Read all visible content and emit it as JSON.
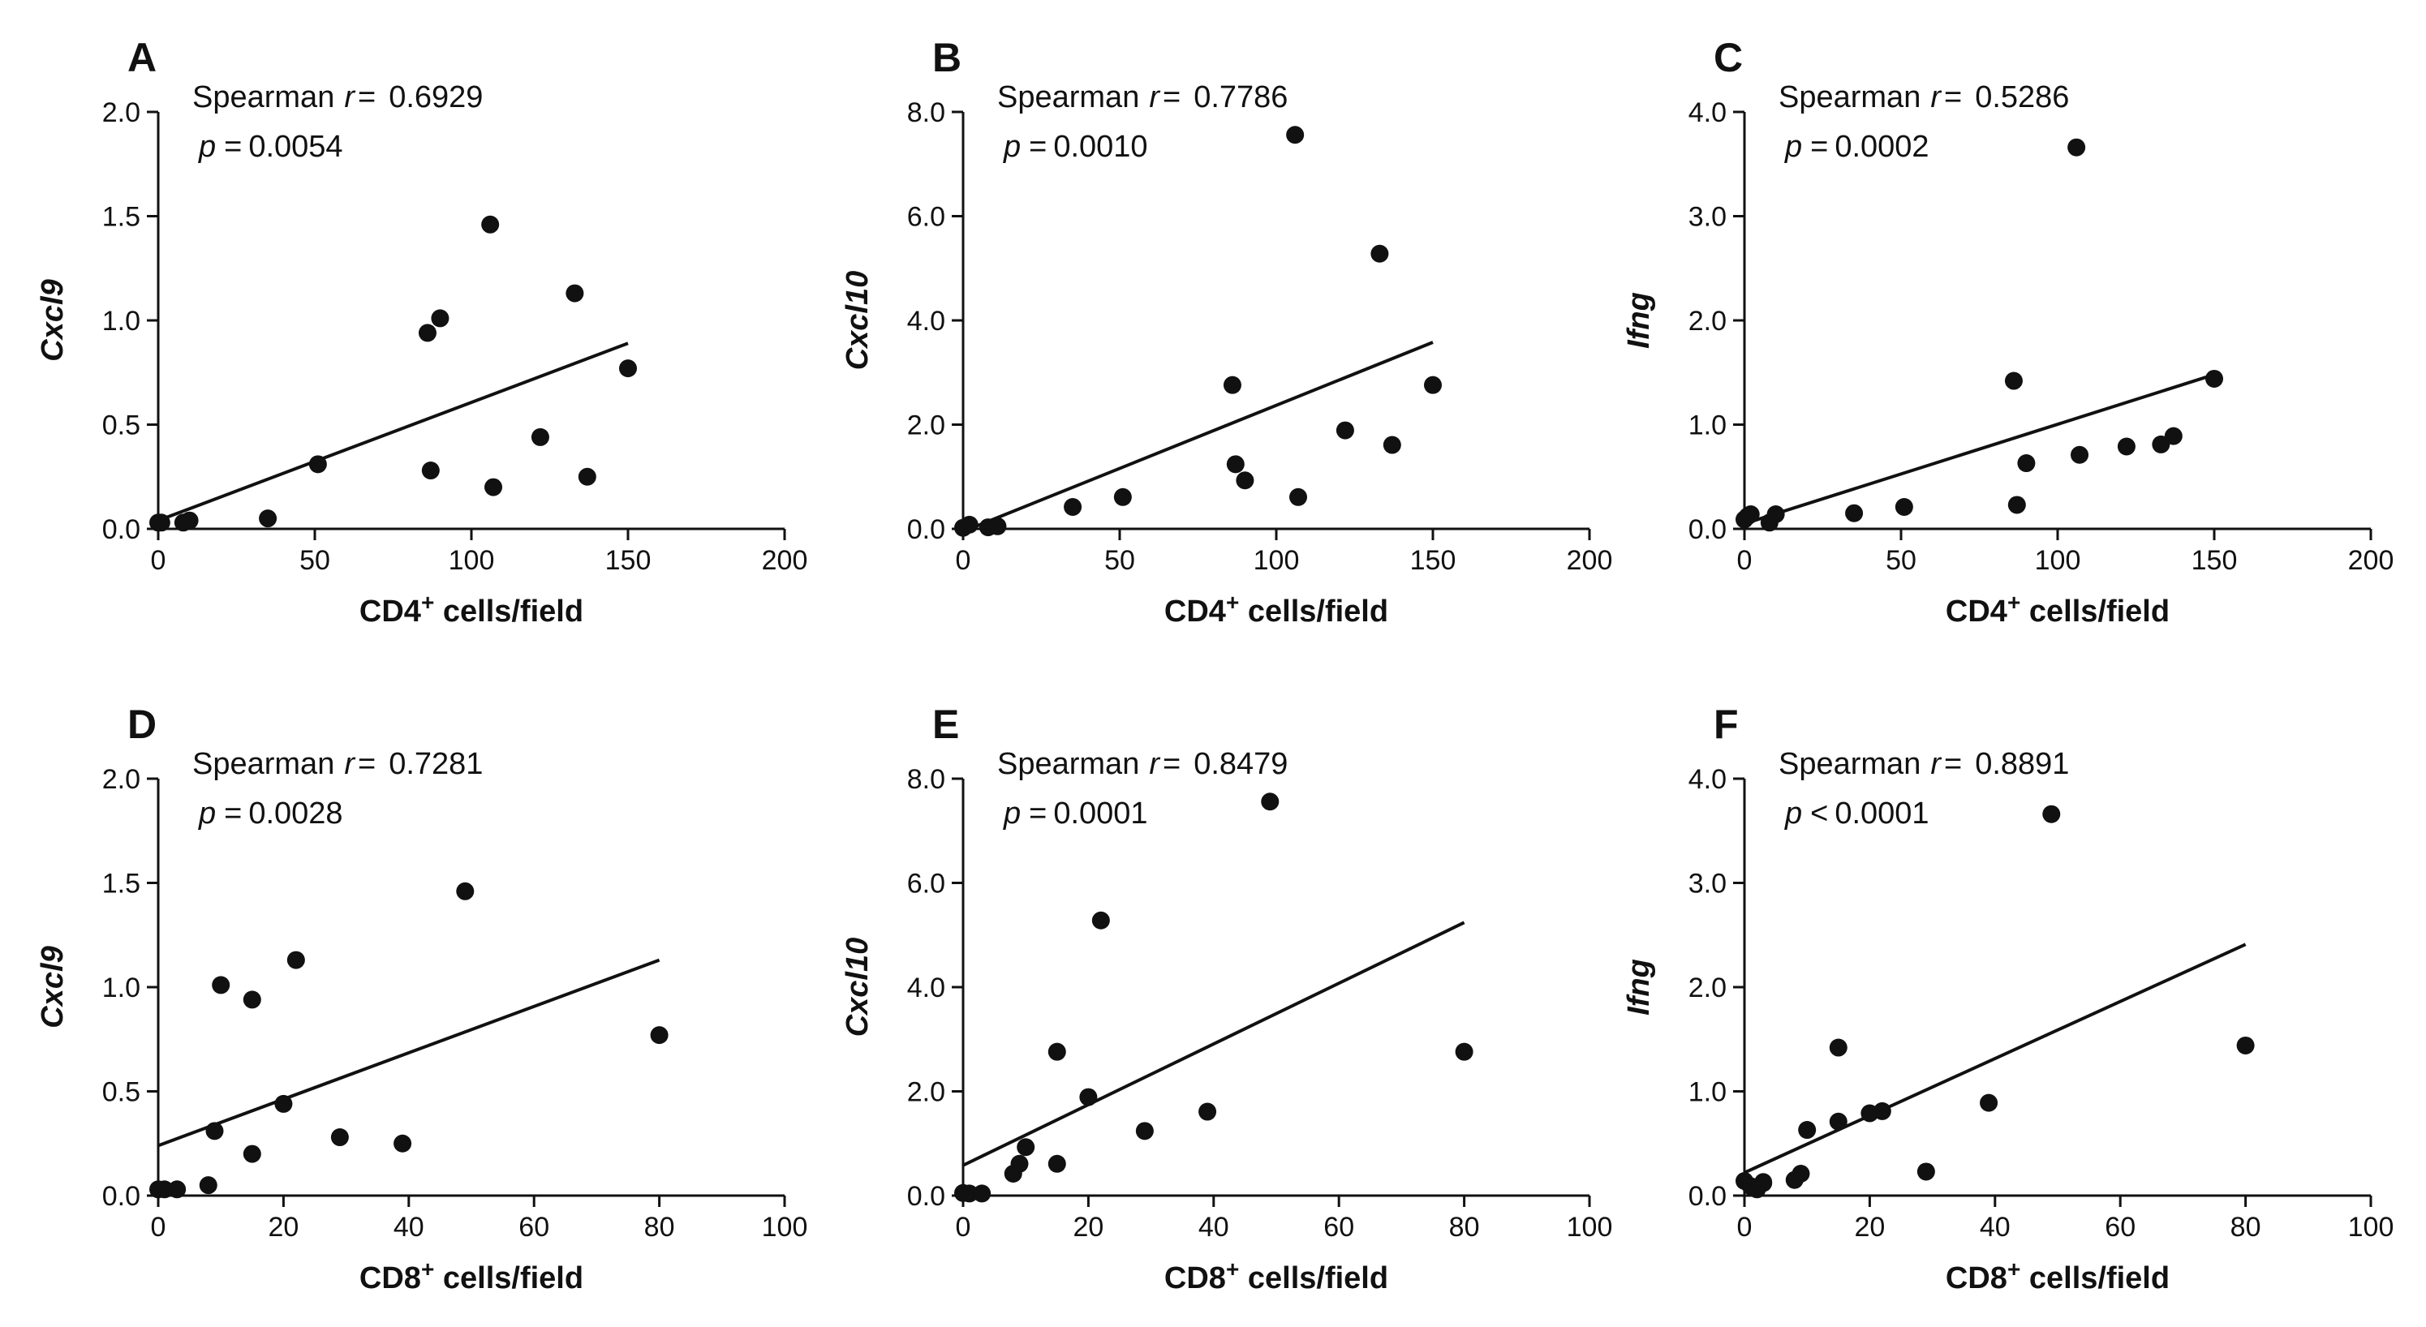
{
  "chart_data": [
    {
      "panel": "A",
      "type": "scatter",
      "stat_label": "Spearman",
      "r_symbol": "r",
      "r_op": "=",
      "r_value": "0.6929",
      "p_symbol": "p",
      "p_op": "=",
      "p_value": "0.0054",
      "xlabel_main": "CD4",
      "xlabel_sup": "+",
      "xlabel_rest": " cells/field",
      "ylabel": "Cxcl9",
      "xlim": [
        0,
        200
      ],
      "ylim": [
        0,
        2.0
      ],
      "xticks": [
        0,
        50,
        100,
        150,
        200
      ],
      "xtick_labels": [
        "0",
        "50",
        "100",
        "150",
        "200"
      ],
      "yticks": [
        0,
        0.5,
        1.0,
        1.5,
        2.0
      ],
      "ytick_labels": [
        "0.0",
        "0.5",
        "1.0",
        "1.5",
        "2.0"
      ],
      "x": [
        0,
        1,
        8,
        10,
        35,
        51,
        86,
        87,
        90,
        106,
        107,
        122,
        133,
        137,
        150
      ],
      "y": [
        0.03,
        0.03,
        0.03,
        0.04,
        0.05,
        0.31,
        0.94,
        0.28,
        1.01,
        1.46,
        0.2,
        0.44,
        1.13,
        0.25,
        0.77
      ],
      "fit": {
        "x": [
          0,
          150
        ],
        "y": [
          0.04,
          0.89
        ]
      }
    },
    {
      "panel": "B",
      "type": "scatter",
      "stat_label": "Spearman",
      "r_symbol": "r",
      "r_op": "=",
      "r_value": "0.7786",
      "p_symbol": "p",
      "p_op": "=",
      "p_value": "0.0010",
      "xlabel_main": "CD4",
      "xlabel_sup": "+",
      "xlabel_rest": " cells/field",
      "ylabel": "Cxcl10",
      "xlim": [
        0,
        200
      ],
      "ylim": [
        0,
        8.0
      ],
      "xticks": [
        0,
        50,
        100,
        150,
        200
      ],
      "xtick_labels": [
        "0",
        "50",
        "100",
        "150",
        "200"
      ],
      "yticks": [
        0,
        2,
        4,
        6,
        8
      ],
      "ytick_labels": [
        "0.0",
        "2.0",
        "4.0",
        "6.0",
        "8.0"
      ],
      "x": [
        0,
        2,
        8,
        11,
        35,
        51,
        86,
        87,
        90,
        106,
        107,
        122,
        133,
        137,
        150
      ],
      "y": [
        0.02,
        0.08,
        0.03,
        0.05,
        0.42,
        0.61,
        2.76,
        1.24,
        0.93,
        7.56,
        0.61,
        1.89,
        5.28,
        1.61,
        2.76
      ],
      "fit": {
        "x": [
          0,
          150
        ],
        "y": [
          -0.05,
          3.58
        ]
      }
    },
    {
      "panel": "C",
      "type": "scatter",
      "stat_label": "Spearman",
      "r_symbol": "r",
      "r_op": "=",
      "r_value": "0.5286",
      "p_symbol": "p",
      "p_op": "=",
      "p_value": "0.0002",
      "xlabel_main": "CD4",
      "xlabel_sup": "+",
      "xlabel_rest": " cells/field",
      "ylabel": "Ifng",
      "xlim": [
        0,
        200
      ],
      "ylim": [
        0,
        4.0
      ],
      "xticks": [
        0,
        50,
        100,
        150,
        200
      ],
      "xtick_labels": [
        "0",
        "50",
        "100",
        "150",
        "200"
      ],
      "yticks": [
        0,
        1,
        2,
        3,
        4
      ],
      "ytick_labels": [
        "0.0",
        "1.0",
        "2.0",
        "3.0",
        "4.0"
      ],
      "x": [
        0,
        1,
        2,
        8,
        10,
        35,
        51,
        86,
        87,
        90,
        106,
        107,
        122,
        133,
        137,
        150
      ],
      "y": [
        0.09,
        0.12,
        0.14,
        0.06,
        0.14,
        0.15,
        0.21,
        1.42,
        0.23,
        0.63,
        3.66,
        0.71,
        0.79,
        0.81,
        0.89,
        1.44
      ],
      "fit": {
        "x": [
          0,
          150
        ],
        "y": [
          0.05,
          1.48
        ]
      }
    },
    {
      "panel": "D",
      "type": "scatter",
      "stat_label": "Spearman",
      "r_symbol": "r",
      "r_op": "=",
      "r_value": "0.7281",
      "p_symbol": "p",
      "p_op": "=",
      "p_value": "0.0028",
      "xlabel_main": "CD8",
      "xlabel_sup": "+",
      "xlabel_rest": " cells/field",
      "ylabel": "Cxcl9",
      "xlim": [
        0,
        100
      ],
      "ylim": [
        0,
        2.0
      ],
      "xticks": [
        0,
        20,
        40,
        60,
        80,
        100
      ],
      "xtick_labels": [
        "0",
        "20",
        "40",
        "60",
        "80",
        "100"
      ],
      "yticks": [
        0,
        0.5,
        1.0,
        1.5,
        2.0
      ],
      "ytick_labels": [
        "0.0",
        "0.5",
        "1.0",
        "1.5",
        "2.0"
      ],
      "x": [
        0,
        1,
        3,
        8,
        9,
        10,
        15,
        15,
        20,
        22,
        29,
        39,
        49,
        80
      ],
      "y": [
        0.03,
        0.03,
        0.03,
        0.05,
        0.31,
        1.01,
        0.94,
        0.2,
        0.44,
        1.13,
        0.28,
        0.25,
        1.46,
        0.77
      ],
      "fit": {
        "x": [
          0,
          80
        ],
        "y": [
          0.24,
          1.13
        ]
      }
    },
    {
      "panel": "E",
      "type": "scatter",
      "stat_label": "Spearman",
      "r_symbol": "r",
      "r_op": "=",
      "r_value": "0.8479",
      "p_symbol": "p",
      "p_op": "=",
      "p_value": "0.0001",
      "xlabel_main": "CD8",
      "xlabel_sup": "+",
      "xlabel_rest": " cells/field",
      "ylabel": "Cxcl10",
      "xlim": [
        0,
        100
      ],
      "ylim": [
        0,
        8.0
      ],
      "xticks": [
        0,
        20,
        40,
        60,
        80,
        100
      ],
      "xtick_labels": [
        "0",
        "20",
        "40",
        "60",
        "80",
        "100"
      ],
      "yticks": [
        0,
        2,
        4,
        6,
        8
      ],
      "ytick_labels": [
        "0.0",
        "2.0",
        "4.0",
        "6.0",
        "8.0"
      ],
      "x": [
        0,
        1,
        3,
        8,
        9,
        10,
        15,
        15,
        20,
        22,
        29,
        39,
        49,
        80
      ],
      "y": [
        0.05,
        0.04,
        0.04,
        0.42,
        0.61,
        0.93,
        2.76,
        0.61,
        1.89,
        5.28,
        1.24,
        1.61,
        7.56,
        2.76
      ],
      "fit": {
        "x": [
          0,
          80
        ],
        "y": [
          0.58,
          5.24
        ]
      }
    },
    {
      "panel": "F",
      "type": "scatter",
      "stat_label": "Spearman",
      "r_symbol": "r",
      "r_op": "=",
      "r_value": "0.8891",
      "p_symbol": "p",
      "p_op": "<",
      "p_value": "0.0001",
      "xlabel_main": "CD8",
      "xlabel_sup": "+",
      "xlabel_rest": " cells/field",
      "ylabel": "Ifng",
      "xlim": [
        0,
        100
      ],
      "ylim": [
        0,
        4.0
      ],
      "xticks": [
        0,
        20,
        40,
        60,
        80,
        100
      ],
      "xtick_labels": [
        "0",
        "20",
        "40",
        "60",
        "80",
        "100"
      ],
      "yticks": [
        0,
        1,
        2,
        3,
        4
      ],
      "ytick_labels": [
        "0.0",
        "1.0",
        "2.0",
        "3.0",
        "4.0"
      ],
      "x": [
        0,
        1,
        2,
        3,
        3,
        8,
        9,
        10,
        15,
        15,
        20,
        22,
        29,
        39,
        49,
        80
      ],
      "y": [
        0.14,
        0.09,
        0.06,
        0.13,
        0.12,
        0.15,
        0.21,
        0.63,
        1.42,
        0.71,
        0.79,
        0.81,
        0.23,
        0.89,
        3.66,
        1.44
      ],
      "fit": {
        "x": [
          0,
          80
        ],
        "y": [
          0.22,
          2.41
        ]
      }
    }
  ]
}
